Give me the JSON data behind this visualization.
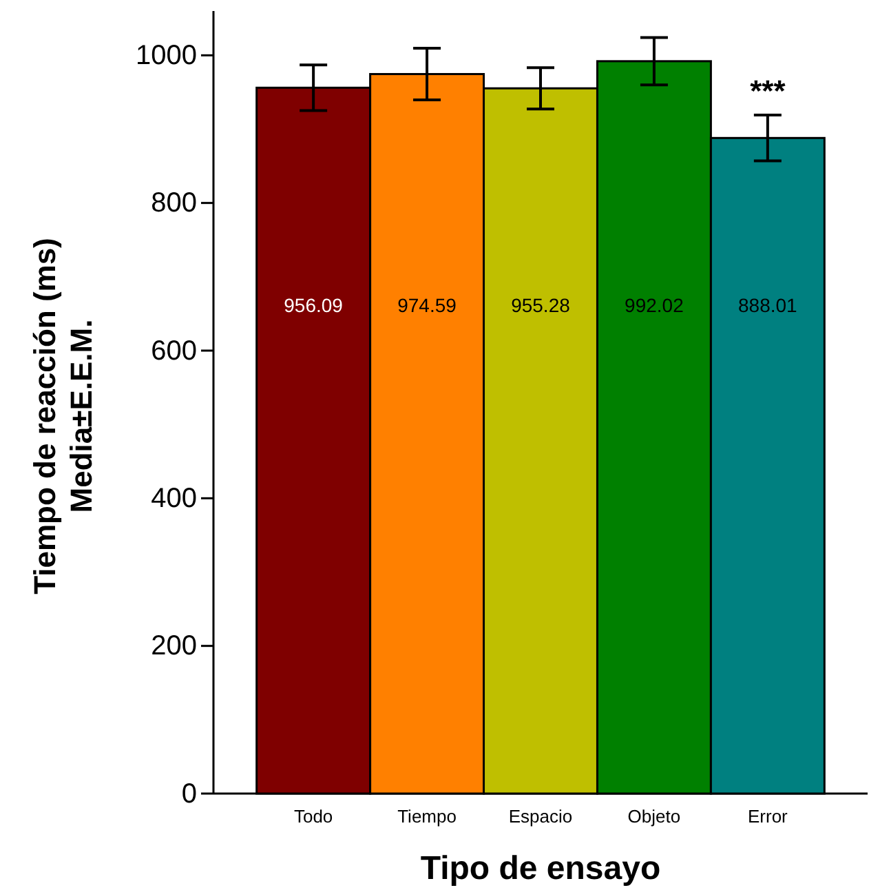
{
  "chart_data": {
    "type": "bar",
    "xlabel": "Tipo de ensayo",
    "ylabel": "Tiempo de reacción (ms)\nMedia±E.E.M.",
    "categories": [
      "Todo",
      "Tiempo",
      "Espacio",
      "Objeto",
      "Error"
    ],
    "values": [
      956.09,
      974.59,
      955.28,
      992.02,
      888.01
    ],
    "colors": [
      "#7f0000",
      "#ff8000",
      "#bfbf00",
      "#008000",
      "#008080"
    ],
    "errors": [
      31,
      35,
      28,
      32,
      31
    ],
    "data_labels": true,
    "annotations": [
      "***"
    ],
    "ylim": [
      0,
      1060
    ],
    "yticks": [
      0,
      200,
      400,
      600,
      800,
      1000
    ],
    "grid": false
  }
}
